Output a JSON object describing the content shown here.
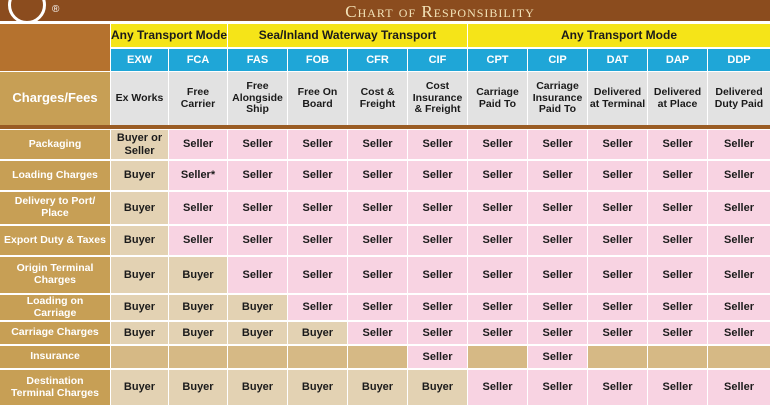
{
  "title": "Chart of Responsibility",
  "logo_mark": "®",
  "colors": {
    "brand": "#8b4c1e",
    "mode_header": "#f5e418",
    "term_header": "#1fa6d7",
    "row_label": "#c79f55",
    "buyer": "#e3d2b3",
    "seller": "#f8d3e2",
    "empty": "#d6b985"
  },
  "modes": [
    {
      "label": "Any Transport Mode",
      "span": 2
    },
    {
      "label": "Sea/Inland Waterway Transport",
      "span": 4
    },
    {
      "label": "Any Transport Mode",
      "span": 5
    }
  ],
  "charges_header": "Charges/Fees",
  "terms": [
    {
      "abbr": "EXW",
      "full": "Ex Works"
    },
    {
      "abbr": "FCA",
      "full": "Free Carrier"
    },
    {
      "abbr": "FAS",
      "full": "Free Alongside Ship"
    },
    {
      "abbr": "FOB",
      "full": "Free On Board"
    },
    {
      "abbr": "CFR",
      "full": "Cost & Freight"
    },
    {
      "abbr": "CIF",
      "full": "Cost Insurance & Freight"
    },
    {
      "abbr": "CPT",
      "full": "Carriage Paid To"
    },
    {
      "abbr": "CIP",
      "full": "Carriage Insurance Paid To"
    },
    {
      "abbr": "DAT",
      "full": "Delivered at Terminal"
    },
    {
      "abbr": "DAP",
      "full": "Delivered at Place"
    },
    {
      "abbr": "DDP",
      "full": "Delivered Duty Paid"
    }
  ],
  "rows": [
    {
      "label": "Packaging",
      "cells": [
        "Buyer or Seller",
        "Seller",
        "Seller",
        "Seller",
        "Seller",
        "Seller",
        "Seller",
        "Seller",
        "Seller",
        "Seller",
        "Seller"
      ]
    },
    {
      "label": "Loading Charges",
      "cells": [
        "Buyer",
        "Seller*",
        "Seller",
        "Seller",
        "Seller",
        "Seller",
        "Seller",
        "Seller",
        "Seller",
        "Seller",
        "Seller"
      ]
    },
    {
      "label": "Delivery to Port/ Place",
      "cells": [
        "Buyer",
        "Seller",
        "Seller",
        "Seller",
        "Seller",
        "Seller",
        "Seller",
        "Seller",
        "Seller",
        "Seller",
        "Seller"
      ]
    },
    {
      "label": "Export Duty & Taxes",
      "cells": [
        "Buyer",
        "Seller",
        "Seller",
        "Seller",
        "Seller",
        "Seller",
        "Seller",
        "Seller",
        "Seller",
        "Seller",
        "Seller"
      ]
    },
    {
      "label": "Origin Terminal Charges",
      "cells": [
        "Buyer",
        "Buyer",
        "Seller",
        "Seller",
        "Seller",
        "Seller",
        "Seller",
        "Seller",
        "Seller",
        "Seller",
        "Seller"
      ]
    },
    {
      "label": "Loading on Carriage",
      "cells": [
        "Buyer",
        "Buyer",
        "Buyer",
        "Seller",
        "Seller",
        "Seller",
        "Seller",
        "Seller",
        "Seller",
        "Seller",
        "Seller"
      ]
    },
    {
      "label": "Carriage Charges",
      "cells": [
        "Buyer",
        "Buyer",
        "Buyer",
        "Buyer",
        "Seller",
        "Seller",
        "Seller",
        "Seller",
        "Seller",
        "Seller",
        "Seller"
      ]
    },
    {
      "label": "Insurance",
      "cells": [
        "",
        "",
        "",
        "",
        "",
        "Seller",
        "",
        "Seller",
        "",
        "",
        ""
      ]
    },
    {
      "label": "Destination Terminal Charges",
      "cells": [
        "Buyer",
        "Buyer",
        "Buyer",
        "Buyer",
        "Buyer",
        "Buyer",
        "Seller",
        "Seller",
        "Seller",
        "Seller",
        "Seller"
      ]
    }
  ]
}
